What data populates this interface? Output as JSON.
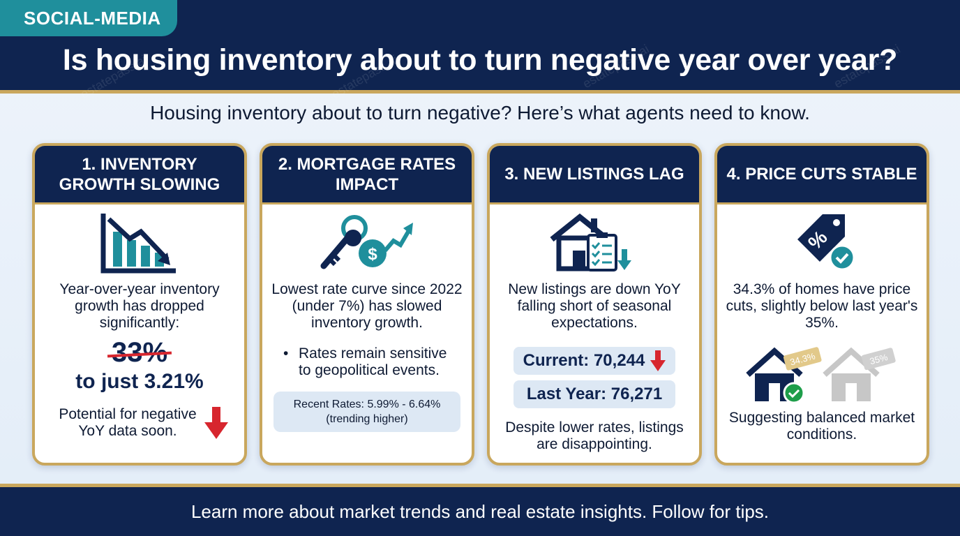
{
  "header": {
    "tag": "SOCIAL-MEDIA",
    "title": "Is housing inventory about to turn negative year over year?",
    "watermark": "estatepass.ai"
  },
  "subtitle": "Housing inventory about to turn negative? Here’s what agents need to know.",
  "cards": [
    {
      "title": "1. INVENTORY GROWTH SLOWING",
      "icon": "declining-bar-chart-icon",
      "body": "Year-over-year inventory growth has dropped significantly:",
      "old_value": "33%",
      "new_value": "to just 3.21%",
      "footer_text": "Potential for negative YoY data soon.",
      "footer_icon": "red-down-arrow-icon"
    },
    {
      "title": "2. MORTGAGE RATES IMPACT",
      "icon": "key-dollar-trend-icon",
      "body": "Lowest rate curve since 2022 (under 7%) has slowed inventory growth.",
      "bullet": "Rates remain sensitive to geopolitical events.",
      "pill": "Recent Rates: 5.99% - 6.64% (trending higher)"
    },
    {
      "title": "3. NEW LISTINGS LAG",
      "icon": "house-checklist-icon",
      "body": "New listings are down YoY falling short of seasonal expectations.",
      "current": "Current: 70,244",
      "last_year": "Last Year: 76,271",
      "footer_text": "Despite lower rates, listings are disappointing."
    },
    {
      "title": "4. PRICE CUTS STABLE",
      "icon": "percent-price-tag-icon",
      "body": "34.3% of homes have price cuts, slightly below last year's 35%.",
      "tag_current": "34.3%",
      "tag_last": "35%",
      "footer_text": "Suggesting balanced market conditions."
    }
  ],
  "footer": "Learn more about market trends and real estate insights. Follow for tips.",
  "colors": {
    "navy": "#0f2450",
    "teal": "#1f8f9c",
    "gold": "#c9a75d",
    "red": "#d7262e",
    "green": "#1e9e4a"
  }
}
